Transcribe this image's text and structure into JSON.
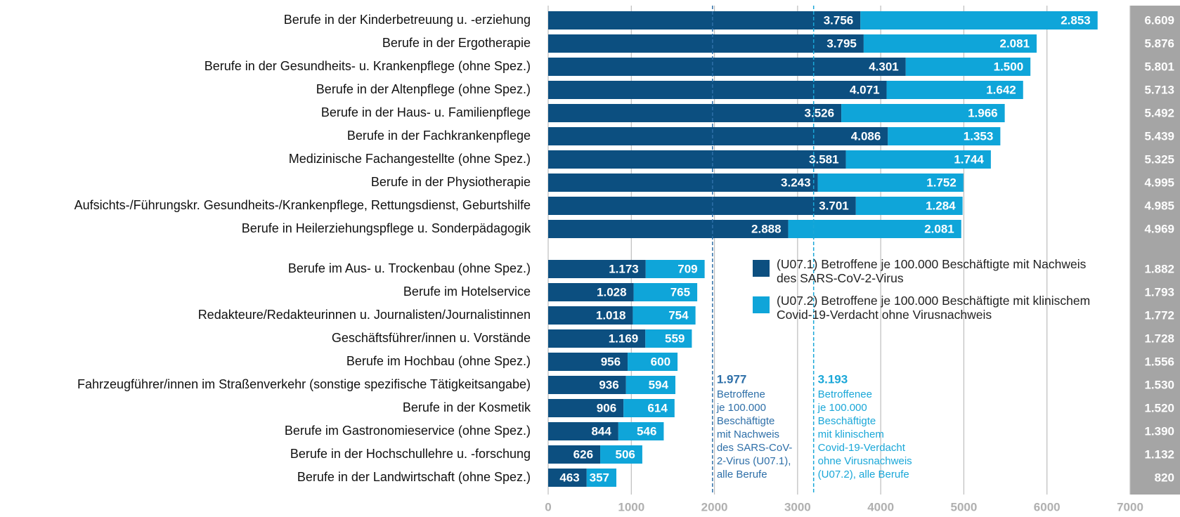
{
  "chart_data": {
    "type": "stacked-bar-horizontal",
    "categories": [
      "Berufe in der Kinderbetreuung u. -erziehung",
      "Berufe in der Ergotherapie",
      "Berufe in der Gesundheits- u. Krankenpflege (ohne Spez.)",
      "Berufe in der Altenpflege (ohne Spez.)",
      "Berufe in der Haus- u. Familienpflege",
      "Berufe in der Fachkrankenpflege",
      "Medizinische Fachangestellte (ohne Spez.)",
      "Berufe in der Physiotherapie",
      "Aufsichts-/Führungskr. Gesundheits-/Krankenpflege, Rettungsdienst, Geburtshilfe",
      "Berufe in Heilerziehungspflege u. Sonderpädagogik",
      "Berufe im Aus- u. Trockenbau (ohne Spez.)",
      "Berufe im Hotelservice",
      "Redakteure/Redakteurinnen u. Journalisten/Journalistinnen",
      "Geschäftsführer/innen u. Vorstände",
      "Berufe im Hochbau (ohne Spez.)",
      "Fahrzeugführer/innen im Straßenverkehr (sonstige spezifische Tätigkeitsangabe)",
      "Berufe in der Kosmetik",
      "Berufe im Gastronomieservice (ohne Spez.)",
      "Berufe in der Hochschullehre u. -forschung",
      "Berufe in der Landwirtschaft (ohne Spez.)"
    ],
    "series": [
      {
        "name": "(U07.1) Betroffene je 100.000 Beschäftigte mit Nachweis des SARS-CoV-2-Virus",
        "color": "#0c4f80",
        "values": [
          3756,
          3795,
          4301,
          4071,
          3526,
          4086,
          3581,
          3243,
          3701,
          2888,
          1173,
          1028,
          1018,
          1169,
          956,
          936,
          906,
          844,
          626,
          463
        ],
        "value_labels": [
          "3.756",
          "3.795",
          "4.301",
          "4.071",
          "3.526",
          "4.086",
          "3.581",
          "3.243",
          "3.701",
          "2.888",
          "1.173",
          "1.028",
          "1.018",
          "1.169",
          "956",
          "936",
          "906",
          "844",
          "626",
          "463"
        ]
      },
      {
        "name": "(U07.2) Betroffene je 100.000 Beschäftigte mit klinischem Covid-19-Verdacht ohne Virusnachweis",
        "color": "#0fa5d9",
        "values": [
          2853,
          2081,
          1500,
          1642,
          1966,
          1353,
          1744,
          1752,
          1284,
          2081,
          709,
          765,
          754,
          559,
          600,
          594,
          614,
          546,
          506,
          357
        ],
        "value_labels": [
          "2.853",
          "2.081",
          "1.500",
          "1.642",
          "1.966",
          "1.353",
          "1.744",
          "1.752",
          "1.284",
          "2.081",
          "709",
          "765",
          "754",
          "559",
          "600",
          "594",
          "614",
          "546",
          "506",
          "357"
        ]
      }
    ],
    "totals": {
      "values": [
        6609,
        5876,
        5801,
        5713,
        5492,
        5439,
        5325,
        4995,
        4985,
        4969,
        1882,
        1793,
        1772,
        1728,
        1556,
        1530,
        1520,
        1390,
        1132,
        820
      ],
      "value_labels": [
        "6.609",
        "5.876",
        "5.801",
        "5.713",
        "5.492",
        "5.439",
        "5.325",
        "4.995",
        "4.985",
        "4.969",
        "1.882",
        "1.793",
        "1.772",
        "1.728",
        "1.556",
        "1.530",
        "1.520",
        "1.390",
        "1.132",
        "820"
      ]
    },
    "reference_lines": [
      {
        "value": 1977,
        "value_label": "1.977",
        "color": "#2e6fa8",
        "text": [
          "Betroffene",
          "je 100.000",
          "Beschäftigte",
          "mit Nachweis",
          "des SARS-CoV-",
          "2-Virus (U07.1),",
          "alle Berufe"
        ]
      },
      {
        "value": 3193,
        "value_label": "3.193",
        "color": "#1aa7d8",
        "text": [
          "Betroffenee",
          "je 100.000",
          "Beschäftigte",
          "mit klinischem",
          "Covid-19-Verdacht",
          "ohne Virusnachweis",
          "(U07.2), alle Berufe"
        ]
      }
    ],
    "xlim": [
      0,
      7000
    ],
    "xticks": [
      0,
      1000,
      2000,
      3000,
      4000,
      5000,
      6000,
      7000
    ],
    "grid": true
  }
}
